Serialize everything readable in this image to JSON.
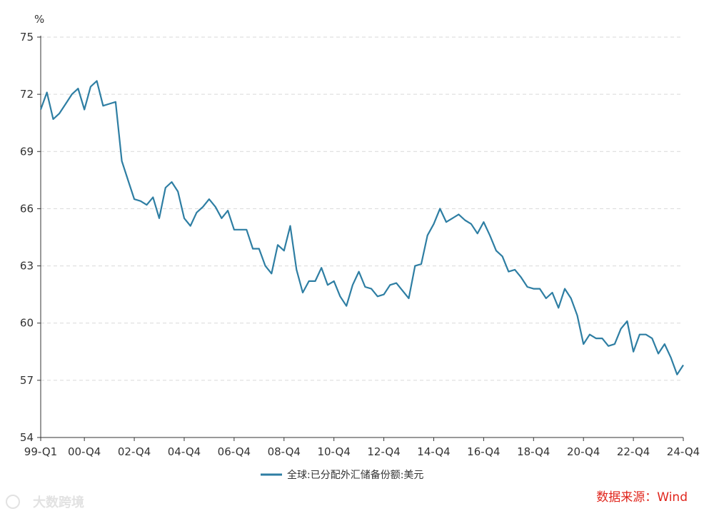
{
  "chart_data": {
    "type": "line",
    "unit": "%",
    "ylim": [
      54,
      75
    ],
    "yticks": [
      54,
      57,
      60,
      63,
      66,
      69,
      72,
      75
    ],
    "grid": true,
    "legend_position": "bottom",
    "x_tick_labels": [
      "99-Q1",
      "00-Q4",
      "02-Q4",
      "04-Q4",
      "06-Q4",
      "08-Q4",
      "10-Q4",
      "12-Q4",
      "14-Q4",
      "16-Q4",
      "18-Q4",
      "20-Q4",
      "22-Q4",
      "24-Q4"
    ],
    "x_start": "99-Q1",
    "x_end": "24-Q4",
    "series": [
      {
        "name": "全球:已分配外汇储备份额:美元",
        "color": "#2e7ea3",
        "values": [
          71.2,
          72.1,
          70.7,
          71.0,
          71.5,
          72.0,
          72.3,
          71.2,
          72.4,
          72.7,
          71.4,
          71.5,
          71.6,
          68.5,
          67.5,
          66.5,
          66.4,
          66.2,
          66.6,
          65.5,
          67.1,
          67.4,
          66.9,
          65.5,
          65.1,
          65.8,
          66.1,
          66.5,
          66.1,
          65.5,
          65.9,
          64.9,
          64.9,
          64.9,
          63.9,
          63.9,
          63.0,
          62.6,
          64.1,
          63.8,
          65.1,
          62.8,
          61.6,
          62.2,
          62.2,
          62.9,
          62.0,
          62.2,
          61.4,
          60.9,
          62.0,
          62.7,
          61.9,
          61.8,
          61.4,
          61.5,
          62.0,
          62.1,
          61.7,
          61.3,
          63.0,
          63.1,
          64.6,
          65.2,
          66.0,
          65.3,
          65.5,
          65.7,
          65.4,
          65.2,
          64.7,
          65.3,
          64.6,
          63.8,
          63.5,
          62.7,
          62.8,
          62.4,
          61.9,
          61.8,
          61.8,
          61.3,
          61.6,
          60.8,
          61.8,
          61.3,
          60.4,
          58.9,
          59.4,
          59.2,
          59.2,
          58.8,
          58.9,
          59.7,
          60.1,
          58.5,
          59.4,
          59.4,
          59.2,
          58.4,
          58.9,
          58.2,
          57.3,
          57.8
        ]
      }
    ]
  },
  "source": "数据来源：Wind",
  "watermark": "大数跨境"
}
